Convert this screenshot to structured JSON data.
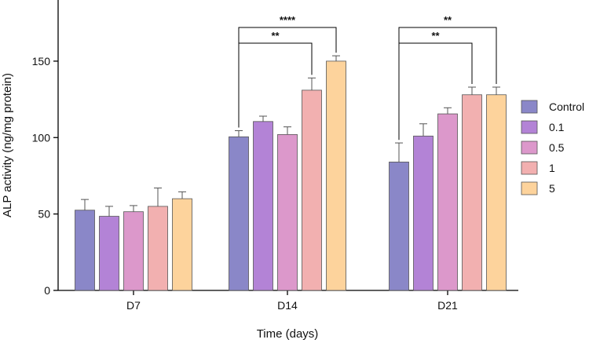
{
  "chart_data": {
    "type": "bar",
    "xlabel": "Time (days)",
    "ylabel": "ALP activity (ng/mg protein)",
    "ylim": [
      0,
      190
    ],
    "yticks": [
      0,
      50,
      100,
      150
    ],
    "categories": [
      "D7",
      "D14",
      "D21"
    ],
    "legend_position": "right",
    "grid": false,
    "series": [
      {
        "name": "Control",
        "color": "#8a87c8",
        "values": [
          52.5,
          100.5,
          84
        ],
        "errors": [
          7,
          4,
          12.5
        ]
      },
      {
        "name": "0.1",
        "color": "#b383d6",
        "values": [
          48.5,
          110.5,
          101
        ],
        "errors": [
          6.5,
          3.5,
          8
        ]
      },
      {
        "name": "0.5",
        "color": "#dc98cb",
        "values": [
          51.5,
          102,
          115.5
        ],
        "errors": [
          4,
          5,
          4
        ]
      },
      {
        "name": "1",
        "color": "#f2b0b0",
        "values": [
          55,
          131,
          128
        ],
        "errors": [
          12,
          8,
          5
        ]
      },
      {
        "name": "5",
        "color": "#fdd39c",
        "values": [
          60,
          150,
          128
        ],
        "errors": [
          4.5,
          3.5,
          5
        ]
      }
    ],
    "significance": [
      {
        "group": "D14",
        "from": "Control",
        "to": "1",
        "label": "**"
      },
      {
        "group": "D14",
        "from": "Control",
        "to": "5",
        "label": "****"
      },
      {
        "group": "D21",
        "from": "Control",
        "to": "1",
        "label": "**"
      },
      {
        "group": "D21",
        "from": "Control",
        "to": "5",
        "label": "**"
      }
    ]
  }
}
